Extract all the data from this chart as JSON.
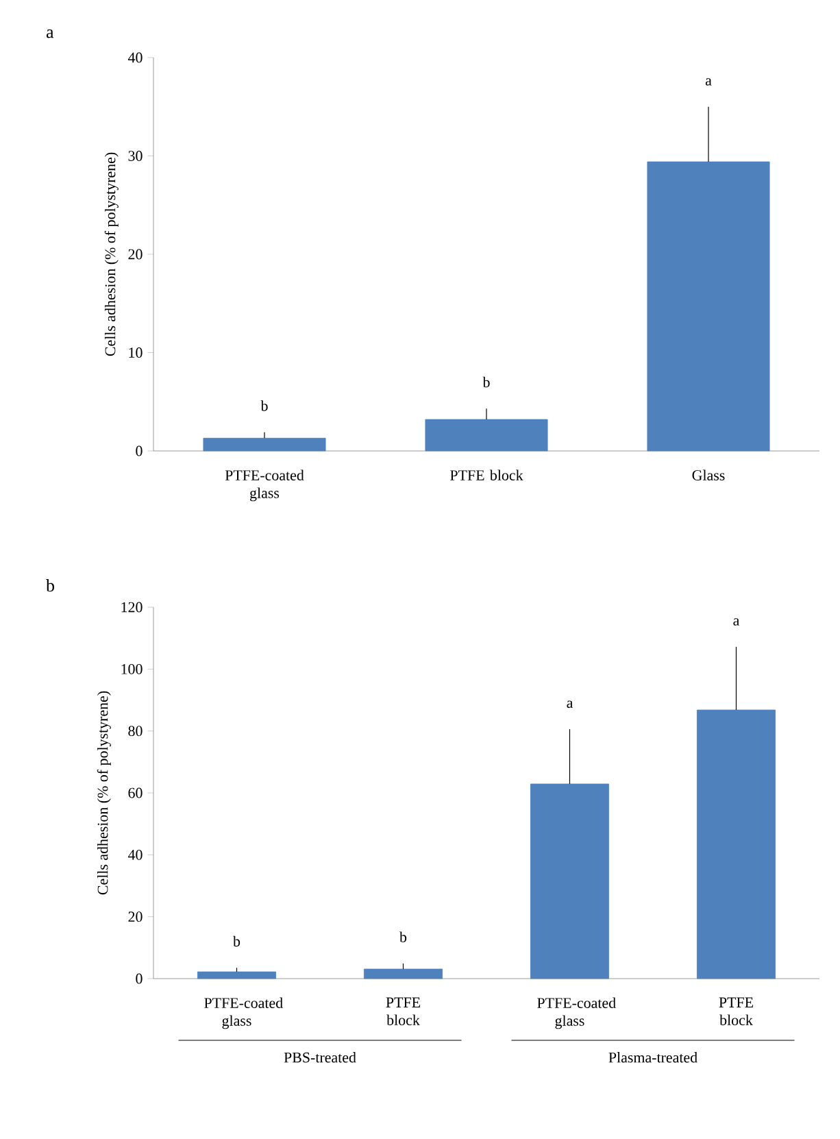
{
  "chart_data": [
    {
      "type": "bar",
      "title": "a",
      "ylabel": "Cells adhesion (% of polystyrene)",
      "categories": [
        "PTFE-coated glass",
        "PTFE block",
        "Glass"
      ],
      "values": [
        1.3,
        3.2,
        29.4
      ],
      "errors": [
        [
          1.3,
          1.9
        ],
        [
          3.2,
          4.3
        ],
        [
          29.4,
          35.0
        ]
      ],
      "color": "#4f81bd",
      "ylim": [
        0,
        40
      ],
      "yticks": [
        0,
        10,
        20,
        30,
        40
      ],
      "annotations": [
        "b",
        "b",
        "a"
      ]
    },
    {
      "type": "bar",
      "title": "b",
      "ylabel": "Cells adhesion (% of polystyrene)",
      "categories": [
        "PTFE-coated glass",
        "PTFE block",
        "PTFE-coated glass",
        "PTFE block"
      ],
      "values": [
        2.2,
        3.1,
        62.9,
        86.8
      ],
      "errors": [
        [
          2.2,
          3.5
        ],
        [
          3.1,
          4.9
        ],
        [
          62.9,
          80.6
        ],
        [
          86.8,
          107.2
        ]
      ],
      "color": "#4f81bd",
      "ylim": [
        0,
        120
      ],
      "yticks": [
        0,
        20,
        40,
        60,
        80,
        100,
        120
      ],
      "annotations": [
        "b",
        "b",
        "a",
        "a",
        "PBS-treated",
        "Plasma-treated"
      ]
    }
  ]
}
